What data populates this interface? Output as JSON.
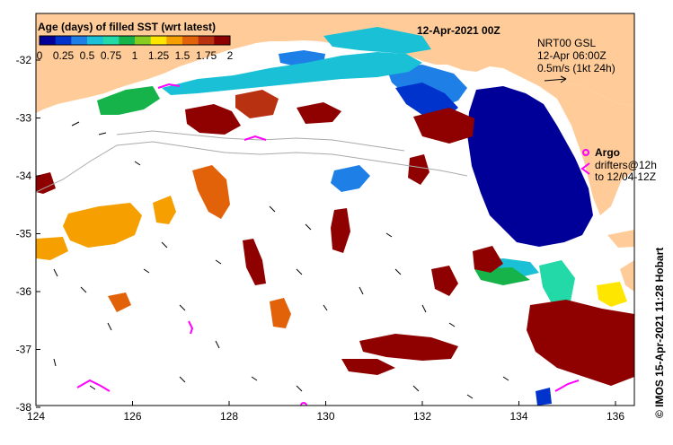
{
  "title": "12-Apr-2021 00Z",
  "colorbar": {
    "title": "Age (days) of filled SST (wrt latest)",
    "ticks": [
      "0",
      "0.25",
      "0.5",
      "0.75",
      "1",
      "1.25",
      "1.5",
      "1.75",
      "2"
    ],
    "colors": [
      "#000099",
      "#0033cc",
      "#1e7fe6",
      "#19c0d6",
      "#24d9a8",
      "#16b34a",
      "#88cc22",
      "#ffe600",
      "#f5a000",
      "#e2620a",
      "#b83212",
      "#8f0000"
    ]
  },
  "current_legend": {
    "product": "NRT00 GSL",
    "time": "12-Apr 06:00Z",
    "scale": "0.5m/s (1kt 24h)"
  },
  "argo_legend": {
    "label": "Argo",
    "line1": "drifters@12h",
    "line2": "to 12/04-12Z"
  },
  "credit": "© IMOS 15-Apr-2021 11:28 Hobart",
  "axes": {
    "x_ticks": [
      "124",
      "126",
      "128",
      "130",
      "132",
      "134",
      "136"
    ],
    "y_ticks": [
      "-32",
      "-33",
      "-34",
      "-35",
      "-36",
      "-37",
      "-38"
    ]
  },
  "colors": {
    "land": "#ffcc99",
    "ocean": "#ffffff",
    "argo": "#ff00ff"
  }
}
